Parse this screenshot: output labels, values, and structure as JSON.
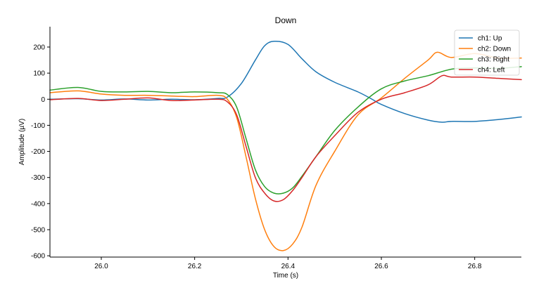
{
  "chart_data": {
    "type": "line",
    "title": "Down",
    "xlabel": "Time (s)",
    "ylabel": "Amplitude (µV)",
    "xlim": [
      25.89,
      26.9
    ],
    "ylim": [
      -605,
      278
    ],
    "xticks": [
      26.0,
      26.2,
      26.4,
      26.6,
      26.8
    ],
    "xtick_labels": [
      "26.0",
      "26.2",
      "26.4",
      "26.6",
      "26.8"
    ],
    "yticks": [
      200,
      100,
      0,
      -100,
      -200,
      -300,
      -400,
      -500,
      -600
    ],
    "ytick_labels": [
      "200",
      "100",
      "0",
      "-100",
      "-200",
      "-300",
      "-400",
      "-500",
      "-600"
    ],
    "grid": false,
    "legend_position": "top-right",
    "series": [
      {
        "name": "ch1: Up",
        "color": "#1f77b4",
        "x": [
          25.89,
          25.95,
          26.0,
          26.05,
          26.1,
          26.15,
          26.2,
          26.25,
          26.27,
          26.3,
          26.33,
          26.35,
          26.37,
          26.4,
          26.43,
          26.46,
          26.5,
          26.55,
          26.58,
          26.6,
          26.65,
          26.7,
          26.73,
          26.75,
          26.8,
          26.85,
          26.9
        ],
        "y": [
          0,
          2,
          -3,
          1,
          -3,
          0,
          -2,
          3,
          8,
          60,
          150,
          205,
          222,
          210,
          155,
          105,
          65,
          28,
          0,
          -20,
          -55,
          -80,
          -88,
          -85,
          -85,
          -78,
          -68
        ]
      },
      {
        "name": "ch2: Down",
        "color": "#ff7f0e",
        "x": [
          25.89,
          25.95,
          26.0,
          26.05,
          26.1,
          26.15,
          26.2,
          26.25,
          26.27,
          26.29,
          26.31,
          26.33,
          26.35,
          26.37,
          26.39,
          26.41,
          26.43,
          26.46,
          26.5,
          26.55,
          26.6,
          26.65,
          26.7,
          26.72,
          26.75,
          26.8,
          26.85,
          26.9
        ],
        "y": [
          25,
          32,
          20,
          15,
          15,
          12,
          10,
          15,
          0,
          -70,
          -220,
          -380,
          -500,
          -565,
          -580,
          -555,
          -490,
          -330,
          -200,
          -60,
          5,
          80,
          150,
          180,
          160,
          175,
          158,
          158
        ]
      },
      {
        "name": "ch3: Right",
        "color": "#2ca02c",
        "x": [
          25.89,
          25.95,
          26.0,
          26.05,
          26.1,
          26.15,
          26.2,
          26.25,
          26.27,
          26.29,
          26.31,
          26.33,
          26.35,
          26.37,
          26.39,
          26.41,
          26.43,
          26.46,
          26.5,
          26.55,
          26.6,
          26.65,
          26.7,
          26.75,
          26.8,
          26.85,
          26.9
        ],
        "y": [
          35,
          45,
          30,
          28,
          30,
          25,
          28,
          25,
          18,
          -30,
          -150,
          -270,
          -335,
          -360,
          -360,
          -340,
          -295,
          -220,
          -120,
          -30,
          40,
          70,
          90,
          115,
          120,
          118,
          125
        ]
      },
      {
        "name": "ch4: Left",
        "color": "#d62728",
        "x": [
          25.89,
          25.95,
          26.0,
          26.05,
          26.1,
          26.15,
          26.2,
          26.25,
          26.27,
          26.29,
          26.31,
          26.33,
          26.35,
          26.37,
          26.39,
          26.41,
          26.43,
          26.46,
          26.5,
          26.55,
          26.6,
          26.65,
          26.7,
          26.73,
          26.75,
          26.8,
          26.85,
          26.9
        ],
        "y": [
          -2,
          3,
          -5,
          0,
          5,
          -5,
          -3,
          0,
          -10,
          -60,
          -180,
          -300,
          -360,
          -390,
          -385,
          -350,
          -300,
          -220,
          -140,
          -50,
          0,
          25,
          55,
          90,
          85,
          85,
          80,
          75
        ]
      }
    ]
  }
}
